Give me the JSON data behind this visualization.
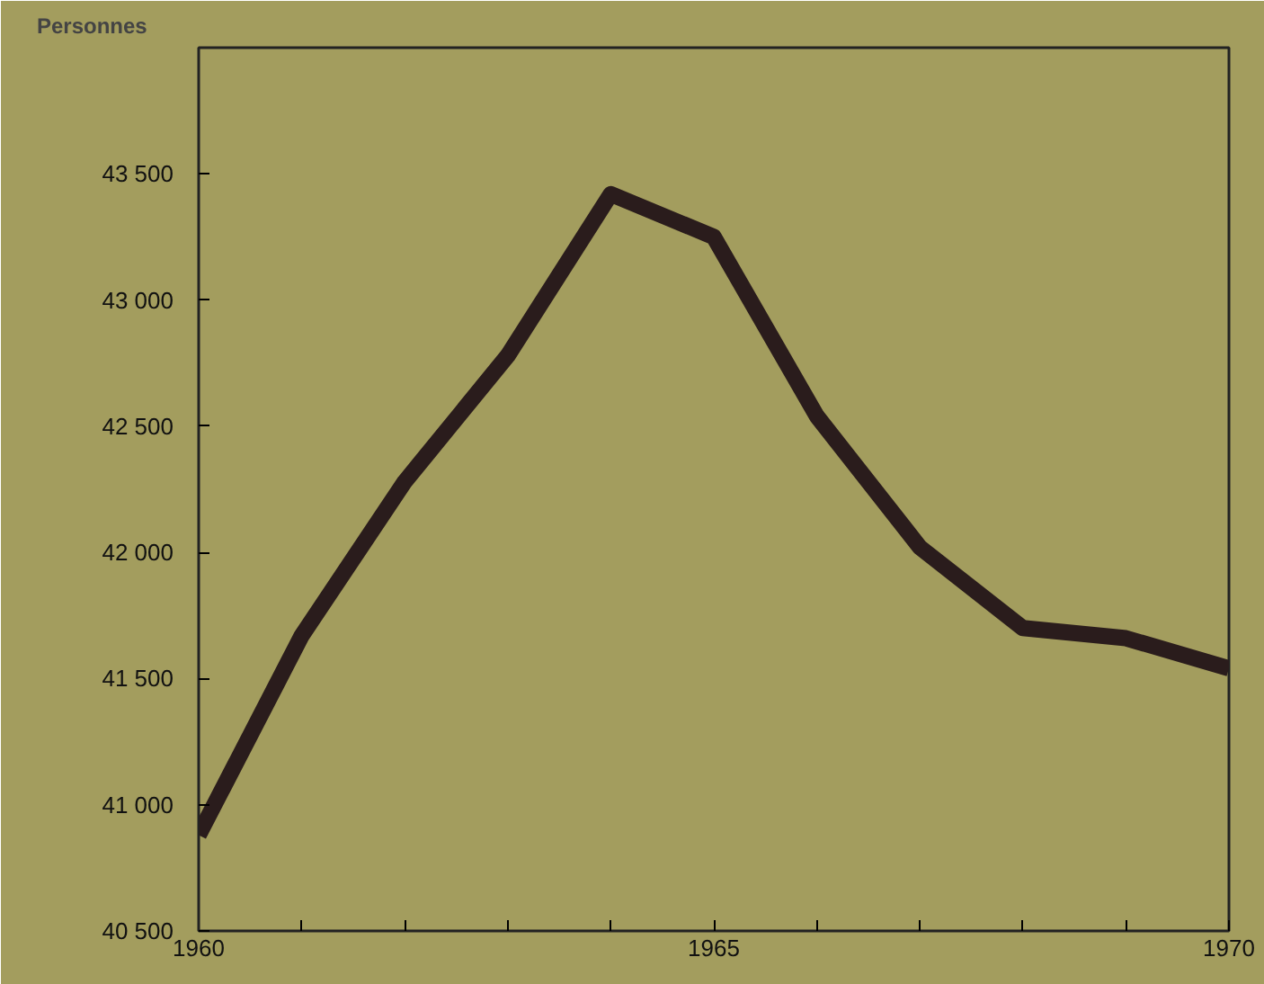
{
  "chart_data": {
    "type": "line",
    "ylabel": "Personnes",
    "x": [
      1960,
      1961,
      1962,
      1963,
      1964,
      1965,
      1966,
      1967,
      1968,
      1969,
      1970
    ],
    "series": [
      {
        "color": "#2a1c1c",
        "values": [
          40880,
          41670,
          42280,
          42780,
          43420,
          43250,
          42540,
          42020,
          41700,
          41660,
          41540
        ]
      }
    ],
    "xlim": [
      1960,
      1970
    ],
    "ylim": [
      40500,
      44000
    ],
    "xticks": [
      1960,
      {
        "value": 1961,
        "label": null
      },
      {
        "value": 1962,
        "label": null
      },
      {
        "value": 1963,
        "label": null
      },
      {
        "value": 1964,
        "label": null
      },
      1965,
      {
        "value": 1966,
        "label": null
      },
      {
        "value": 1967,
        "label": null
      },
      {
        "value": 1968,
        "label": null
      },
      {
        "value": 1969,
        "label": null
      },
      1970
    ],
    "yticks": [
      {
        "value": 40500,
        "label": "40 500"
      },
      {
        "value": 41000,
        "label": "41 000"
      },
      {
        "value": 41500,
        "label": "41 500"
      },
      {
        "value": 42000,
        "label": "42 000"
      },
      {
        "value": 42500,
        "label": "42 500"
      },
      {
        "value": 43000,
        "label": "43 000"
      },
      {
        "value": 43500,
        "label": "43 500"
      }
    ],
    "grid": false,
    "line_style": "solid",
    "marker": "none"
  }
}
